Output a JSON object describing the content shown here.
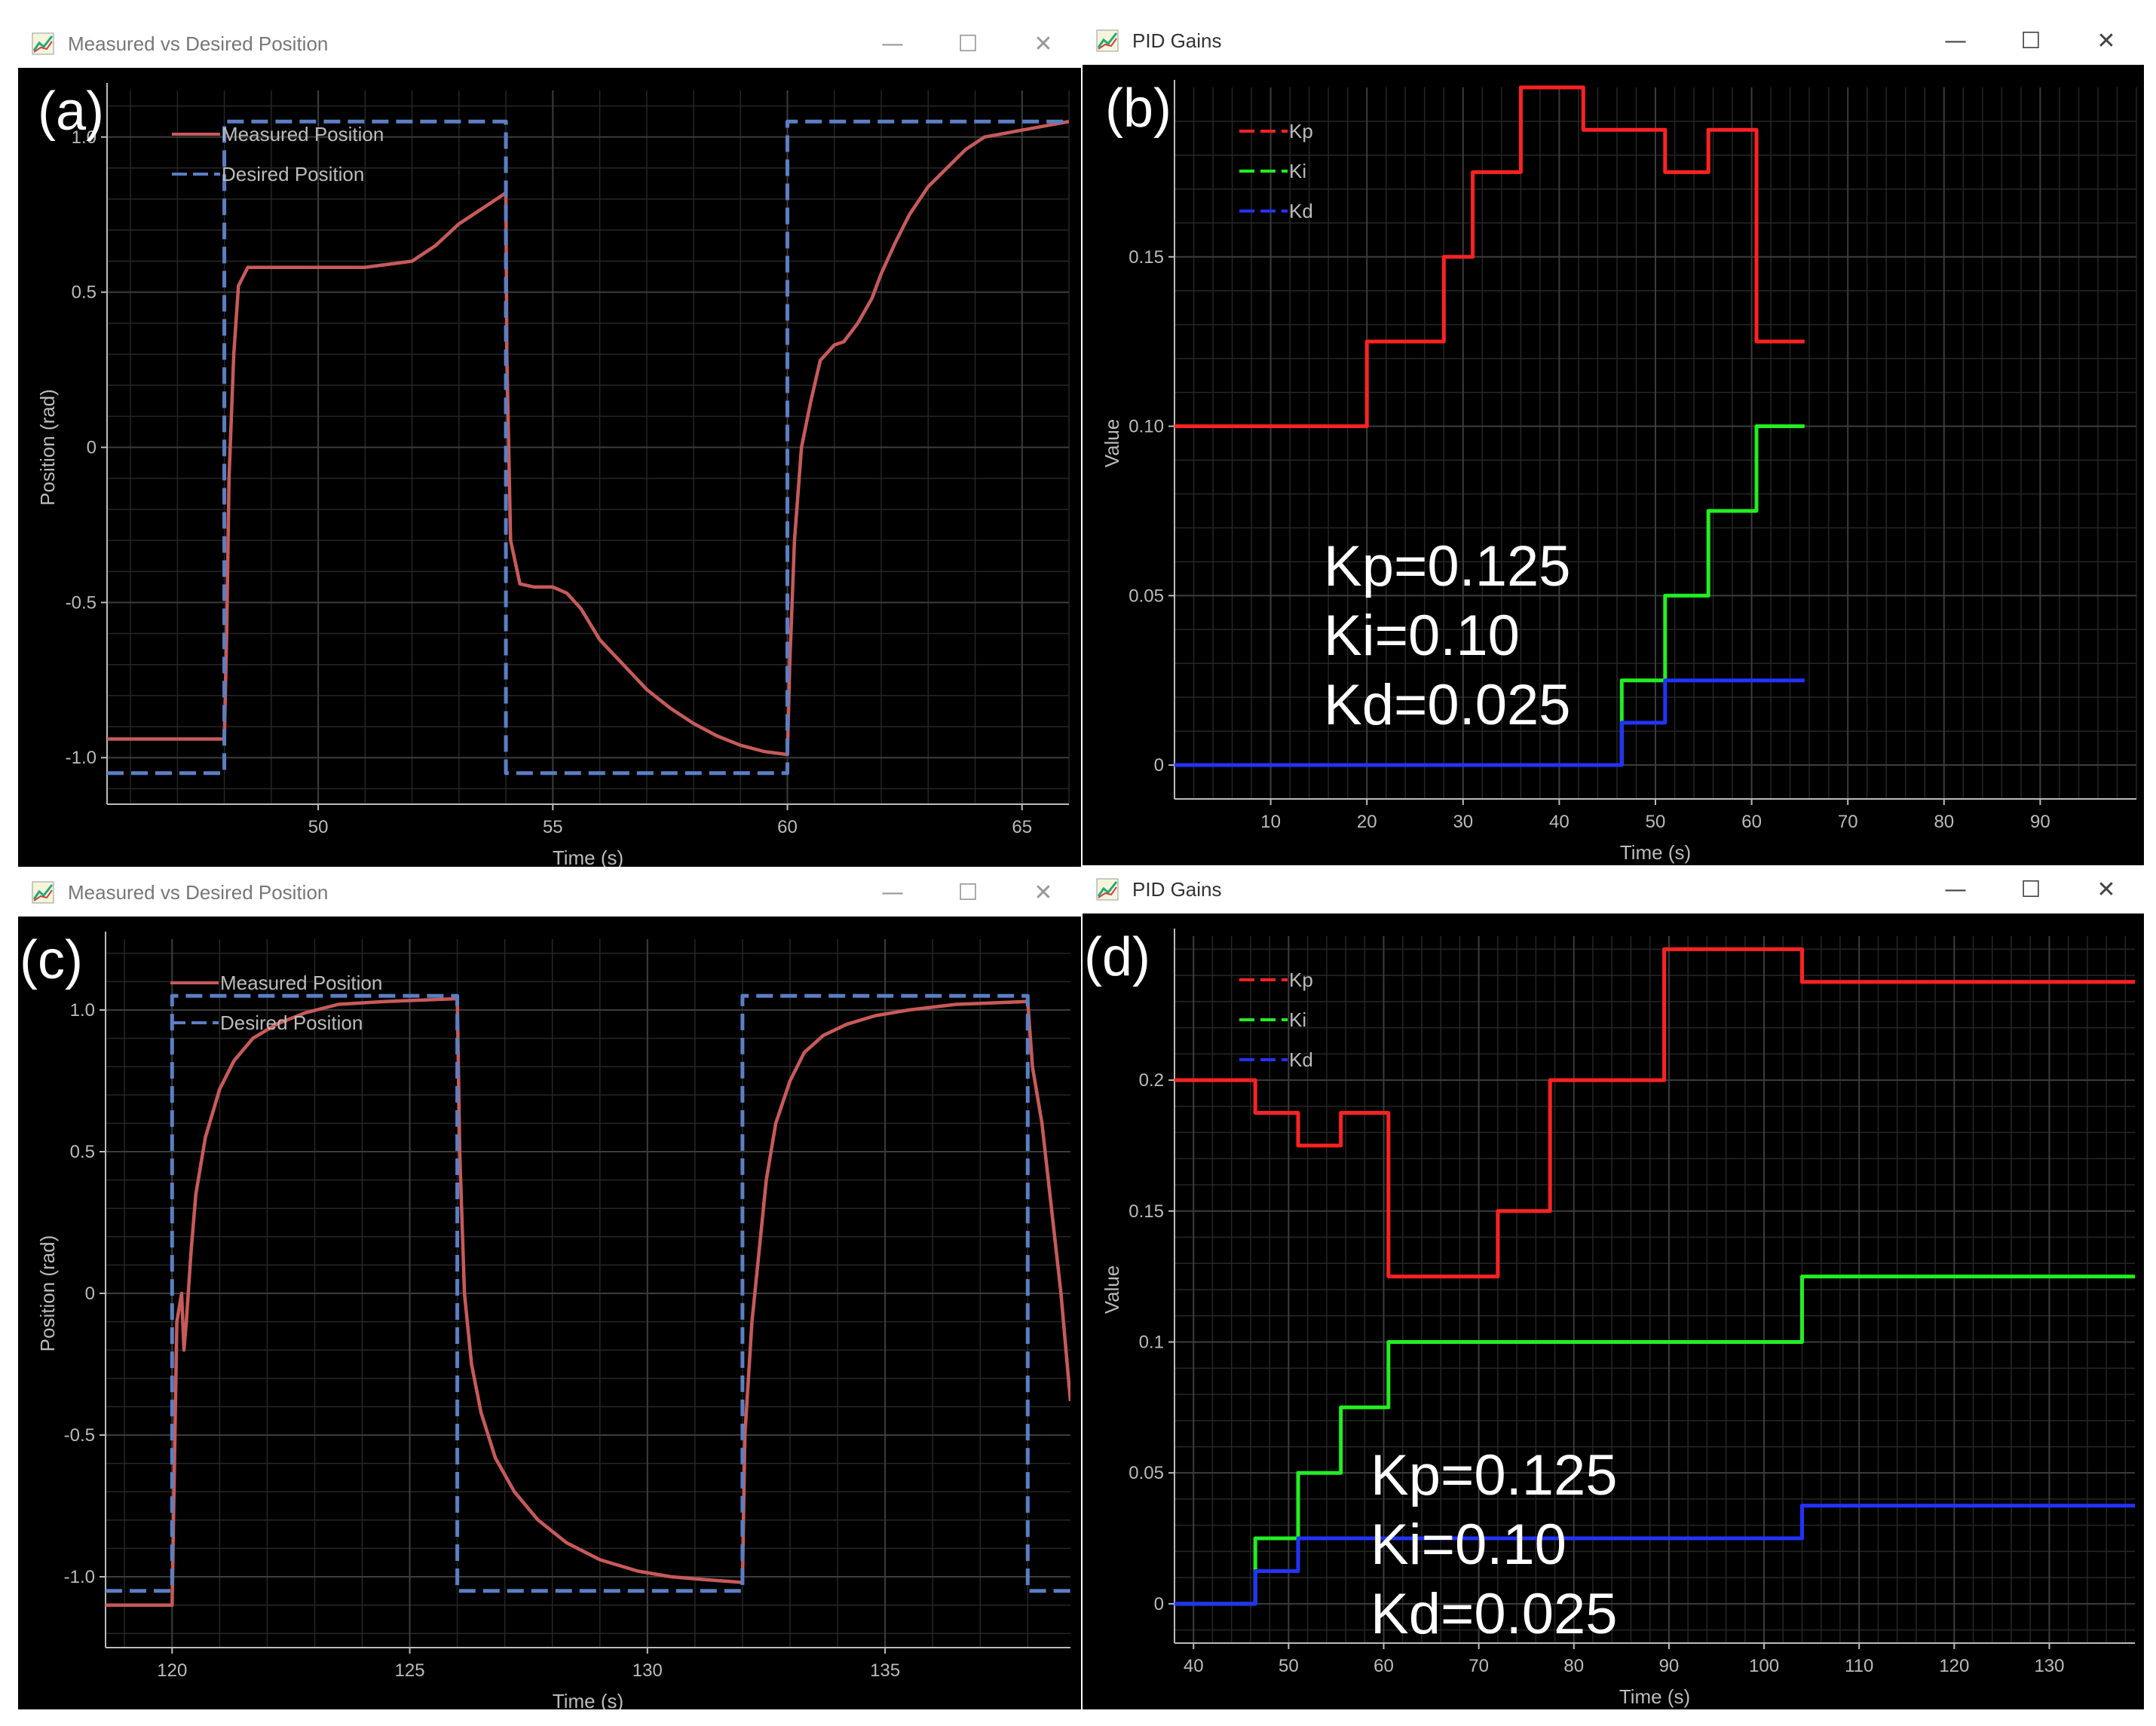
{
  "windows": [
    {
      "id": "a",
      "title": "Measured vs Desired Position",
      "label": "(a)"
    },
    {
      "id": "b",
      "title": "PID Gains",
      "label": "(b)"
    },
    {
      "id": "c",
      "title": "Measured vs Desired Position",
      "label": "(c)"
    },
    {
      "id": "d",
      "title": "PID Gains",
      "label": "(d)"
    }
  ],
  "window_controls": {
    "minimize": "—",
    "maximize": "☐",
    "close": "✕"
  },
  "colors": {
    "measured": "#c85a5a",
    "desired": "#5b7fc4",
    "kp": "#ff2222",
    "ki": "#22ee22",
    "kd": "#2233ff",
    "axis": "#bbbbbb",
    "grid": "#3c3c3c"
  },
  "annotations": {
    "b": [
      "Kp=0.125",
      "Ki=0.10",
      "Kd=0.025"
    ],
    "d": [
      "Kp=0.125",
      "Ki=0.10",
      "Kd=0.025"
    ]
  },
  "chart_data": [
    {
      "id": "a",
      "type": "line",
      "xlabel": "Time (s)",
      "ylabel": "Position (rad)",
      "xlim": [
        45.5,
        66
      ],
      "ylim": [
        -1.15,
        1.15
      ],
      "xticks": [
        50,
        55,
        60,
        65
      ],
      "xtick_labels": [
        "50",
        "55",
        "60",
        "65"
      ],
      "yticks": [
        -1.0,
        -0.5,
        0,
        0.5,
        1.0
      ],
      "ytick_labels": [
        "-1.0",
        "-0.5",
        "0",
        "0.5",
        "1.0"
      ],
      "legend": "top-left",
      "series": [
        {
          "name": "Measured Position",
          "style": "solid",
          "color_key": "measured",
          "x": [
            45.5,
            48.0,
            48.05,
            48.1,
            48.2,
            48.3,
            48.5,
            49,
            51,
            51.5,
            52,
            52.5,
            53,
            53.5,
            54.0,
            54.02,
            54.1,
            54.3,
            54.6,
            55,
            55.3,
            55.6,
            56,
            56.5,
            57,
            57.5,
            58,
            58.5,
            59,
            59.5,
            60.0,
            60.05,
            60.15,
            60.3,
            60.5,
            60.7,
            61,
            61.2,
            61.5,
            61.8,
            62,
            62.3,
            62.6,
            63,
            63.4,
            63.8,
            64.2,
            66
          ],
          "y": [
            -0.94,
            -0.94,
            -0.6,
            -0.1,
            0.3,
            0.52,
            0.58,
            0.58,
            0.58,
            0.59,
            0.6,
            0.65,
            0.72,
            0.77,
            0.82,
            0.3,
            -0.3,
            -0.44,
            -0.45,
            -0.45,
            -0.47,
            -0.52,
            -0.62,
            -0.7,
            -0.78,
            -0.84,
            -0.89,
            -0.93,
            -0.96,
            -0.98,
            -0.99,
            -0.7,
            -0.3,
            0.0,
            0.15,
            0.28,
            0.33,
            0.34,
            0.4,
            0.48,
            0.56,
            0.66,
            0.75,
            0.84,
            0.9,
            0.96,
            1.0,
            1.05
          ]
        },
        {
          "name": "Desired Position",
          "style": "dashed",
          "color_key": "desired",
          "x": [
            45.5,
            48.0,
            48.0,
            54.0,
            54.0,
            60.0,
            60.0,
            66
          ],
          "y": [
            -1.05,
            -1.05,
            1.05,
            1.05,
            -1.05,
            -1.05,
            1.05,
            1.05
          ]
        }
      ]
    },
    {
      "id": "b",
      "type": "line",
      "xlabel": "Time (s)",
      "ylabel": "Value",
      "xlim": [
        0,
        100
      ],
      "ylim": [
        -0.01,
        0.2
      ],
      "xticks": [
        10,
        20,
        30,
        40,
        50,
        60,
        70,
        80,
        90
      ],
      "xtick_labels": [
        "10",
        "20",
        "30",
        "40",
        "50",
        "60",
        "70",
        "80",
        "90"
      ],
      "yticks": [
        0,
        0.05,
        0.1,
        0.15
      ],
      "ytick_labels": [
        "0",
        "0.05",
        "0.10",
        "0.15"
      ],
      "legend": "top-left",
      "series": [
        {
          "name": "Kp",
          "style": "step",
          "color_key": "kp",
          "x": [
            0,
            20,
            20,
            28,
            28,
            31,
            31,
            36,
            36,
            42.5,
            42.5,
            51,
            51,
            55.5,
            55.5,
            60.5,
            60.5,
            65.5
          ],
          "y": [
            0.1,
            0.1,
            0.125,
            0.125,
            0.15,
            0.15,
            0.175,
            0.175,
            0.2,
            0.2,
            0.1875,
            0.1875,
            0.175,
            0.175,
            0.1875,
            0.1875,
            0.125,
            0.125
          ]
        },
        {
          "name": "Ki",
          "style": "step",
          "color_key": "ki",
          "x": [
            0,
            46.5,
            46.5,
            51,
            51,
            55.5,
            55.5,
            60.5,
            60.5,
            65.5
          ],
          "y": [
            0,
            0,
            0.025,
            0.025,
            0.05,
            0.05,
            0.075,
            0.075,
            0.1,
            0.1
          ]
        },
        {
          "name": "Kd",
          "style": "step",
          "color_key": "kd",
          "x": [
            0,
            46.5,
            46.5,
            51,
            51,
            65.5
          ],
          "y": [
            0,
            0,
            0.0125,
            0.0125,
            0.025,
            0.025
          ]
        }
      ]
    },
    {
      "id": "c",
      "type": "line",
      "xlabel": "Time (s)",
      "ylabel": "Position (rad)",
      "xlim": [
        118.6,
        138.9
      ],
      "ylim": [
        -1.25,
        1.25
      ],
      "xticks": [
        120,
        125,
        130,
        135
      ],
      "xtick_labels": [
        "120",
        "125",
        "130",
        "135"
      ],
      "yticks": [
        -1.0,
        -0.5,
        0,
        0.5,
        1.0
      ],
      "ytick_labels": [
        "-1.0",
        "-0.5",
        "0",
        "0.5",
        "1.0"
      ],
      "legend": "top-left",
      "series": [
        {
          "name": "Measured Position",
          "style": "solid",
          "color_key": "measured",
          "x": [
            118.6,
            120.0,
            120.05,
            120.1,
            120.2,
            120.25,
            120.3,
            120.4,
            120.5,
            120.7,
            121,
            121.3,
            121.7,
            122.2,
            122.8,
            123.5,
            124.5,
            126.0,
            126.05,
            126.15,
            126.3,
            126.5,
            126.8,
            127.2,
            127.7,
            128.3,
            129,
            129.8,
            130.5,
            131.2,
            132.0,
            132.05,
            132.2,
            132.35,
            132.5,
            132.7,
            133,
            133.3,
            133.7,
            134.2,
            134.8,
            135.5,
            136.5,
            138.0,
            138.1,
            138.3,
            138.5,
            138.7,
            138.9
          ],
          "y": [
            -1.1,
            -1.1,
            -0.6,
            -0.1,
            0.0,
            -0.2,
            -0.1,
            0.15,
            0.35,
            0.55,
            0.72,
            0.82,
            0.9,
            0.95,
            0.99,
            1.02,
            1.03,
            1.04,
            0.5,
            0.0,
            -0.25,
            -0.42,
            -0.58,
            -0.7,
            -0.8,
            -0.88,
            -0.94,
            -0.98,
            -1.0,
            -1.01,
            -1.02,
            -0.5,
            -0.1,
            0.15,
            0.4,
            0.6,
            0.75,
            0.85,
            0.91,
            0.95,
            0.98,
            1.0,
            1.02,
            1.03,
            0.8,
            0.6,
            0.3,
            0.0,
            -0.38
          ]
        },
        {
          "name": "Desired Position",
          "style": "dashed",
          "color_key": "desired",
          "x": [
            118.6,
            120.0,
            120.0,
            126.0,
            126.0,
            132.0,
            132.0,
            138.0,
            138.0,
            138.9
          ],
          "y": [
            -1.05,
            -1.05,
            1.05,
            1.05,
            -1.05,
            -1.05,
            1.05,
            1.05,
            -1.05,
            -1.05
          ]
        }
      ]
    },
    {
      "id": "d",
      "type": "line",
      "xlabel": "Time (s)",
      "ylabel": "Value",
      "xlim": [
        38,
        139
      ],
      "ylim": [
        -0.015,
        0.255
      ],
      "xticks": [
        40,
        50,
        60,
        70,
        80,
        90,
        100,
        110,
        120,
        130
      ],
      "xtick_labels": [
        "40",
        "50",
        "60",
        "70",
        "80",
        "90",
        "100",
        "110",
        "120",
        "130"
      ],
      "yticks": [
        0,
        0.05,
        0.1,
        0.15,
        0.2
      ],
      "ytick_labels": [
        "0",
        "0.05",
        "0.1",
        "0.15",
        "0.2"
      ],
      "legend": "top-left",
      "series": [
        {
          "name": "Kp",
          "style": "step",
          "color_key": "kp",
          "x": [
            38,
            46.5,
            46.5,
            51,
            51,
            55.5,
            55.5,
            60.5,
            60.5,
            72,
            72,
            77.5,
            77.5,
            89.5,
            89.5,
            104,
            104,
            139
          ],
          "y": [
            0.2,
            0.2,
            0.1875,
            0.1875,
            0.175,
            0.175,
            0.1875,
            0.1875,
            0.125,
            0.125,
            0.15,
            0.15,
            0.2,
            0.2,
            0.25,
            0.25,
            0.2375,
            0.2375
          ]
        },
        {
          "name": "Ki",
          "style": "step",
          "color_key": "ki",
          "x": [
            38,
            46.5,
            46.5,
            51,
            51,
            55.5,
            55.5,
            60.5,
            60.5,
            104,
            104,
            139
          ],
          "y": [
            0,
            0,
            0.025,
            0.025,
            0.05,
            0.05,
            0.075,
            0.075,
            0.1,
            0.1,
            0.125,
            0.125
          ]
        },
        {
          "name": "Kd",
          "style": "step",
          "color_key": "kd",
          "x": [
            38,
            46.5,
            46.5,
            51,
            51,
            104,
            104,
            139
          ],
          "y": [
            0,
            0,
            0.0125,
            0.0125,
            0.025,
            0.025,
            0.0375,
            0.0375
          ]
        }
      ]
    }
  ]
}
